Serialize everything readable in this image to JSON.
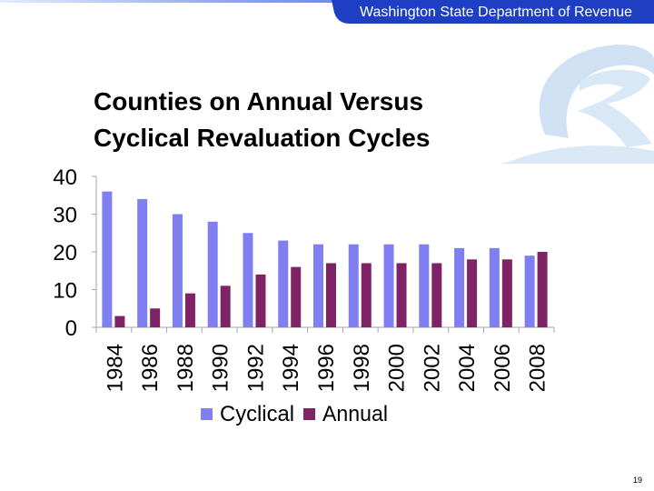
{
  "header": {
    "organization": "Washington State Department of Revenue"
  },
  "slide": {
    "title_line1": "Counties on Annual Versus",
    "title_line2": "Cyclical Revaluation Cycles",
    "page_number": "19"
  },
  "colors": {
    "header_bar": "#1e3fc4",
    "header_text": "#ffffff",
    "logo": "#c5dbf0",
    "cyclical": "#7f7ff2",
    "annual": "#7f2366"
  },
  "chart_data": {
    "type": "bar",
    "categories": [
      "1984",
      "1986",
      "1988",
      "1990",
      "1992",
      "1994",
      "1996",
      "1998",
      "2000",
      "2002",
      "2004",
      "2006",
      "2008"
    ],
    "series": [
      {
        "name": "Cyclical",
        "values": [
          36,
          34,
          30,
          28,
          25,
          23,
          22,
          22,
          22,
          22,
          21,
          21,
          19
        ]
      },
      {
        "name": "Annual",
        "values": [
          3,
          5,
          9,
          11,
          14,
          16,
          17,
          17,
          17,
          17,
          18,
          18,
          20
        ]
      }
    ],
    "yticks": [
      "0",
      "10",
      "20",
      "30",
      "40"
    ],
    "ylim": [
      0,
      40
    ],
    "grid": false,
    "legend": "bottom"
  }
}
